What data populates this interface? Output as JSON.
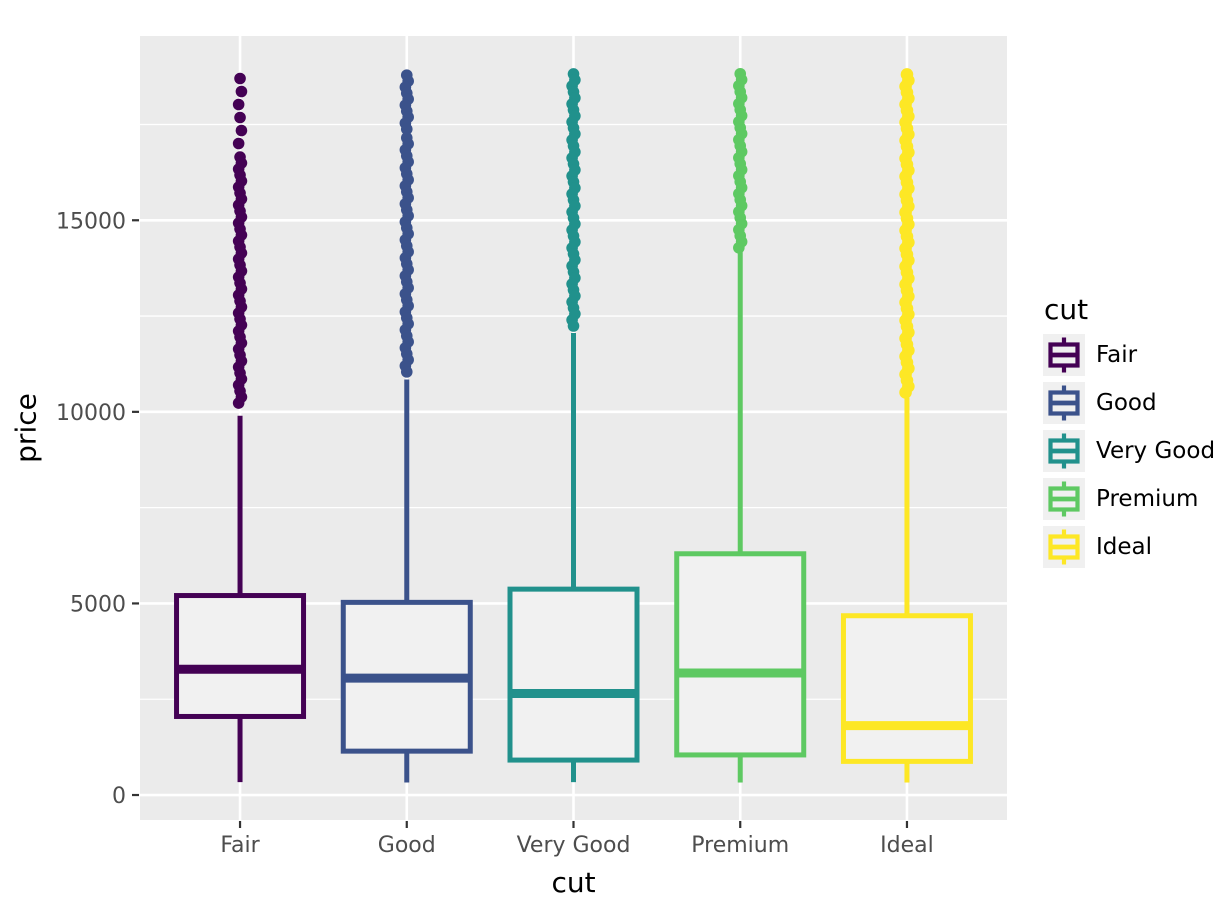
{
  "chart_data": {
    "type": "boxplot",
    "xlabel": "cut",
    "ylabel": "price",
    "categories": [
      "Fair",
      "Good",
      "Very Good",
      "Premium",
      "Ideal"
    ],
    "colors": [
      "#440154",
      "#3B528B",
      "#21918C",
      "#5EC962",
      "#FDE725"
    ],
    "y_ticks": [
      0,
      5000,
      10000,
      15000
    ],
    "y_tick_labels": [
      "0",
      "5000",
      "10000",
      "15000"
    ],
    "y_minor_ticks": [
      2500,
      7500,
      12500,
      17500
    ],
    "ylim": [
      -652,
      19809
    ],
    "series": [
      {
        "name": "Fair",
        "min": 337,
        "q1": 2050,
        "median": 3282,
        "q3": 5206,
        "whisker_high": 9899,
        "outlier_bands": [
          {
            "low": 10100,
            "high": 16650,
            "density": "dense"
          },
          {
            "low": 16950,
            "high": 18700,
            "density": "sparse"
          }
        ]
      },
      {
        "name": "Good",
        "min": 327,
        "q1": 1145,
        "median": 3050,
        "q3": 5028,
        "whisker_high": 10845,
        "outlier_bands": [
          {
            "low": 11000,
            "high": 17150,
            "density": "dense"
          },
          {
            "low": 17350,
            "high": 18788,
            "density": "dense"
          }
        ]
      },
      {
        "name": "Very Good",
        "min": 336,
        "q1": 912,
        "median": 2648,
        "q3": 5373,
        "whisker_high": 12059,
        "outlier_bands": [
          {
            "low": 12100,
            "high": 18818,
            "density": "dense"
          }
        ]
      },
      {
        "name": "Premium",
        "min": 326,
        "q1": 1046,
        "median": 3185,
        "q3": 6296,
        "whisker_high": 14167,
        "outlier_bands": [
          {
            "low": 14150,
            "high": 18823,
            "density": "dense"
          }
        ]
      },
      {
        "name": "Ideal",
        "min": 326,
        "q1": 878,
        "median": 1810,
        "q3": 4679,
        "whisker_high": 10372,
        "outlier_bands": [
          {
            "low": 10380,
            "high": 18806,
            "density": "dense"
          }
        ]
      }
    ],
    "legend": {
      "title": "cut",
      "entries": [
        "Fair",
        "Good",
        "Very Good",
        "Premium",
        "Ideal"
      ]
    },
    "panel_bg": "#EBEBEB",
    "grid_color": "#FFFFFF",
    "box_fill": "#F1F1F1",
    "tick_text_color": "#4D4D4D",
    "tick_mark_color": "#333333",
    "legend_key_bg": "#F0F0F0"
  }
}
